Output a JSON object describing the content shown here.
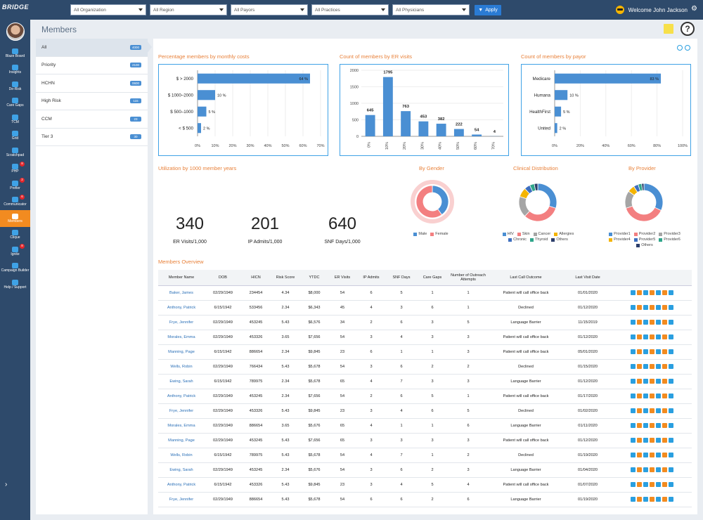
{
  "header": {
    "logo": "BRIDGE",
    "filters": [
      {
        "label": "All Organization"
      },
      {
        "label": "All Region"
      },
      {
        "label": "All Payors"
      },
      {
        "label": "All Practices"
      },
      {
        "label": "All Physicians"
      }
    ],
    "apply_label": "Apply",
    "welcome": "Welcome John Jackson"
  },
  "sidebar": {
    "items": [
      {
        "label": "Blaze Board",
        "badge": ""
      },
      {
        "label": "Insights",
        "badge": ""
      },
      {
        "label": "De-Risk",
        "badge": ""
      },
      {
        "label": "Care Gaps",
        "badge": ""
      },
      {
        "label": "TCM",
        "badge": ""
      },
      {
        "label": "Grid",
        "badge": ""
      },
      {
        "label": "Scratchpad",
        "badge": ""
      },
      {
        "label": "PHP",
        "badge": "8"
      },
      {
        "label": "Prefier",
        "badge": "2"
      },
      {
        "label": "Communicator",
        "badge": "6"
      },
      {
        "label": "Members",
        "badge": ""
      },
      {
        "label": "Clique",
        "badge": ""
      },
      {
        "label": "Ignite",
        "badge": "8"
      },
      {
        "label": "Campaign Builder",
        "badge": ""
      },
      {
        "label": "Help / Support",
        "badge": ""
      }
    ],
    "active": "Members"
  },
  "page": {
    "title": "Members"
  },
  "segments": [
    {
      "label": "All",
      "count": "4000"
    },
    {
      "label": "Priority",
      "count": "2100"
    },
    {
      "label": "HCHN",
      "count": "0600"
    },
    {
      "label": "High Risk",
      "count": "115"
    },
    {
      "label": "CCM",
      "count": "23"
    },
    {
      "label": "Tier 3",
      "count": "30"
    }
  ],
  "chart_data": [
    {
      "type": "bar",
      "orientation": "horizontal",
      "title": "Percentage members by monthly costs",
      "categories": [
        "$ > 2000",
        "$ 1000–2000",
        "$ 500–1000",
        "< $ 500"
      ],
      "values": [
        64,
        10,
        5,
        2
      ],
      "value_suffix": " %",
      "xlim": [
        0,
        70
      ],
      "ticks": [
        "0%",
        "10%",
        "20%",
        "30%",
        "40%",
        "50%",
        "60%",
        "70%"
      ]
    },
    {
      "type": "bar",
      "title": "Count of members by ER visits",
      "categories": [
        "0%",
        "10%",
        "20%",
        "30%",
        "40%",
        "50%",
        "60%",
        "70%"
      ],
      "values": [
        645,
        1795,
        763,
        453,
        382,
        222,
        54,
        4
      ],
      "ylim": [
        0,
        2000
      ],
      "ticks": [
        "0",
        "500",
        "1000",
        "1500",
        "2000"
      ]
    },
    {
      "type": "bar",
      "orientation": "horizontal",
      "title": "Count of members by payor",
      "categories": [
        "Medicare",
        "Humana",
        "HealthFirst",
        "United"
      ],
      "values": [
        83,
        10,
        5,
        2
      ],
      "value_suffix": " %",
      "xlim": [
        0,
        100
      ],
      "ticks": [
        "0%",
        "20%",
        "40%",
        "60%",
        "80%",
        "100%"
      ]
    },
    {
      "type": "pie",
      "title": "By Gender",
      "series": [
        {
          "name": "Male",
          "value": 40,
          "color": "#4a8fd3"
        },
        {
          "name": "Female",
          "value": 60,
          "color": "#f37f80"
        }
      ]
    },
    {
      "type": "pie",
      "title": "Clinical Distribution",
      "series": [
        {
          "name": "HIV",
          "value": 30,
          "color": "#4a8fd3"
        },
        {
          "name": "Skin",
          "value": 32,
          "color": "#f37f80"
        },
        {
          "name": "Cancer",
          "value": 18,
          "color": "#a5a5a5"
        },
        {
          "name": "Allergies",
          "value": 8,
          "color": "#f4b400"
        },
        {
          "name": "Chronic",
          "value": 5,
          "color": "#3e6fbf"
        },
        {
          "name": "Thyroid",
          "value": 4,
          "color": "#2fa58a"
        },
        {
          "name": "Others",
          "value": 3,
          "color": "#2c3e6b"
        }
      ]
    },
    {
      "type": "pie",
      "title": "By Provider",
      "series": [
        {
          "name": "Provider1",
          "value": 32,
          "color": "#4a8fd3"
        },
        {
          "name": "Provider2",
          "value": 38,
          "color": "#f37f80"
        },
        {
          "name": "Provider3",
          "value": 15,
          "color": "#a5a5a5"
        },
        {
          "name": "Provider4",
          "value": 6,
          "color": "#f4b400"
        },
        {
          "name": "Provider5",
          "value": 4,
          "color": "#3e6fbf"
        },
        {
          "name": "Provider6",
          "value": 3,
          "color": "#2fa58a"
        },
        {
          "name": "Others",
          "value": 2,
          "color": "#2c3e6b"
        }
      ]
    }
  ],
  "utilization": {
    "title": "Utilization by 1000 member years",
    "kpis": [
      {
        "value": "340",
        "label": "ER Visits/1,000"
      },
      {
        "value": "201",
        "label": "IP Admits/1,000"
      },
      {
        "value": "640",
        "label": "SNF Days/1,000"
      }
    ]
  },
  "overview": {
    "title": "Members Overview",
    "columns": [
      "Member Name",
      "DOB",
      "HICN",
      "Risk Score",
      "YTDC",
      "ER Visits",
      "IP Admits",
      "SNF Days",
      "Care Gaps",
      "Number of Outreach Attempts",
      "Last Call Outcome",
      "Last Visit Date"
    ],
    "rows": [
      [
        "Baker, James",
        "02/29/1949",
        "234454",
        "4.34",
        "$8,000",
        "54",
        "6",
        "5",
        "1",
        "1",
        "Patient will call office back",
        "01/01/2020"
      ],
      [
        "Anthony, Patrick",
        "6/15/1942",
        "533456",
        "2.34",
        "$6,343",
        "45",
        "4",
        "3",
        "6",
        "1",
        "Declined",
        "01/12/2020"
      ],
      [
        "Frye, Jennifer",
        "02/29/1949",
        "453245",
        "5.43",
        "$6,576",
        "34",
        "2",
        "6",
        "3",
        "5",
        "Language Barrier",
        "11/15/2019"
      ],
      [
        "Morales, Emma",
        "02/29/1949",
        "453326",
        "3.65",
        "$7,656",
        "54",
        "3",
        "4",
        "3",
        "3",
        "Patient will call office back",
        "01/12/2020"
      ],
      [
        "Manning, Page",
        "6/15/1942",
        "886654",
        "2.34",
        "$9,845",
        "23",
        "6",
        "1",
        "1",
        "3",
        "Patient will call office back",
        "05/01/2020"
      ],
      [
        "Wells, Robin",
        "02/29/1949",
        "766434",
        "5.43",
        "$5,678",
        "54",
        "3",
        "6",
        "2",
        "2",
        "Declined",
        "01/15/2020"
      ],
      [
        "Ewing, Sarah",
        "6/15/1942",
        "789975",
        "2.34",
        "$5,678",
        "65",
        "4",
        "7",
        "3",
        "3",
        "Language Barrier",
        "01/12/2020"
      ],
      [
        "Anthony, Patrick",
        "02/29/1949",
        "453245",
        "2.34",
        "$7,656",
        "54",
        "2",
        "6",
        "5",
        "1",
        "Patient will call office back",
        "01/17/2020"
      ],
      [
        "Frye, Jennifer",
        "02/29/1949",
        "453326",
        "5.43",
        "$9,845",
        "23",
        "3",
        "4",
        "6",
        "5",
        "Declined",
        "01/02/2020"
      ],
      [
        "Morales, Emma",
        "02/29/1949",
        "886654",
        "3.65",
        "$5,676",
        "65",
        "4",
        "1",
        "1",
        "6",
        "Language Barrier",
        "01/11/2020"
      ],
      [
        "Manning, Page",
        "02/29/1949",
        "453245",
        "5.43",
        "$7,656",
        "65",
        "3",
        "3",
        "3",
        "3",
        "Patient will call office back",
        "01/12/2020"
      ],
      [
        "Wells, Robin",
        "6/15/1942",
        "789975",
        "5.43",
        "$5,678",
        "54",
        "4",
        "7",
        "1",
        "2",
        "Declined",
        "01/19/2020"
      ],
      [
        "Ewing, Sarah",
        "02/29/1949",
        "453245",
        "2.34",
        "$5,676",
        "54",
        "3",
        "6",
        "2",
        "3",
        "Language Barrier",
        "01/04/2020"
      ],
      [
        "Anthony, Patrick",
        "6/15/1942",
        "453326",
        "5.43",
        "$9,845",
        "23",
        "3",
        "4",
        "5",
        "4",
        "Patient will call office back",
        "01/07/2020"
      ],
      [
        "Frye, Jennifer",
        "02/29/1949",
        "886654",
        "5.43",
        "$5,678",
        "54",
        "6",
        "6",
        "2",
        "6",
        "Language Barrier",
        "01/19/2020"
      ]
    ],
    "actions": [
      "phone-icon",
      "chat-icon",
      "clipboard-icon",
      "mail-icon",
      "monitor-icon",
      "message-icon",
      "calendar-icon"
    ],
    "action_colors": [
      "#2a9fe0",
      "#f28b20",
      "#2a9fe0",
      "#f28b20",
      "#2a9fe0",
      "#f28b20",
      "#2a9fe0"
    ]
  }
}
